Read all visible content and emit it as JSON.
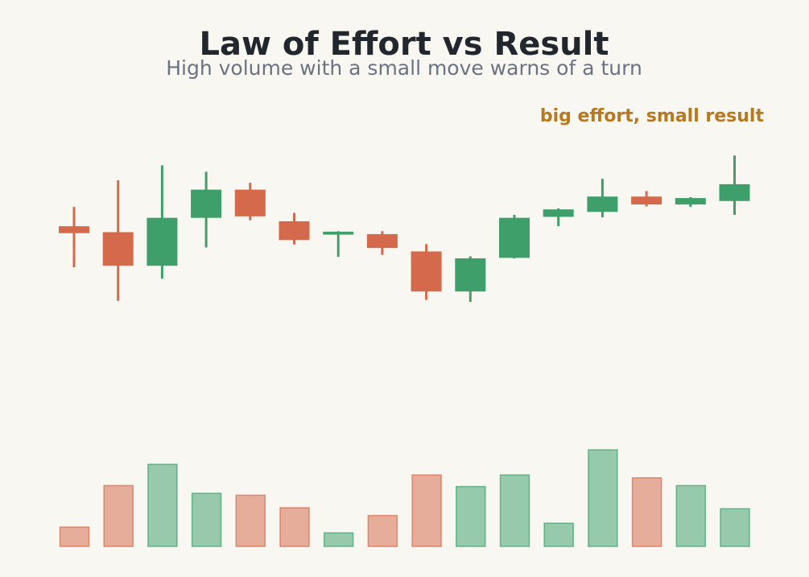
{
  "chart_data": {
    "type": "candlestick",
    "title": "Law of Effort vs Result",
    "subtitle": "High volume with a small move warns of a turn",
    "annotation": {
      "text": "big effort, small result",
      "target_index": 15
    },
    "colors": {
      "up": "#3e9f6b",
      "down": "#d46a4b",
      "annotation": "#b7791f",
      "background": "#f9f7f2"
    },
    "grid": false,
    "price_range": [
      40,
      110
    ],
    "volume_range": [
      0,
      100
    ],
    "candles": [
      {
        "open": 85.4,
        "close": 84.0,
        "high": 89.3,
        "low": 77.1,
        "volume": 20
      },
      {
        "open": 84.2,
        "close": 77.4,
        "high": 94.7,
        "low": 70.3,
        "volume": 63
      },
      {
        "open": 77.4,
        "close": 87.1,
        "high": 97.7,
        "low": 74.8,
        "volume": 85
      },
      {
        "open": 87.1,
        "close": 92.8,
        "high": 96.4,
        "low": 81.1,
        "volume": 55
      },
      {
        "open": 92.8,
        "close": 87.4,
        "high": 94.2,
        "low": 86.6,
        "volume": 53
      },
      {
        "open": 86.4,
        "close": 82.6,
        "high": 88.1,
        "low": 81.7,
        "volume": 40
      },
      {
        "open": 83.7,
        "close": 84.3,
        "high": 84.4,
        "low": 79.2,
        "volume": 14
      },
      {
        "open": 83.8,
        "close": 81.0,
        "high": 84.4,
        "low": 79.6,
        "volume": 32
      },
      {
        "open": 80.3,
        "close": 72.2,
        "high": 81.8,
        "low": 70.5,
        "volume": 74
      },
      {
        "open": 72.2,
        "close": 78.9,
        "high": 79.3,
        "low": 70.1,
        "volume": 62
      },
      {
        "open": 79.0,
        "close": 87.1,
        "high": 87.7,
        "low": 78.9,
        "volume": 74
      },
      {
        "open": 87.3,
        "close": 88.8,
        "high": 89.0,
        "low": 85.4,
        "volume": 24
      },
      {
        "open": 88.3,
        "close": 91.4,
        "high": 95.0,
        "low": 87.2,
        "volume": 100
      },
      {
        "open": 91.4,
        "close": 89.8,
        "high": 92.5,
        "low": 89.4,
        "volume": 71
      },
      {
        "open": 89.8,
        "close": 91.1,
        "high": 91.3,
        "low": 89.3,
        "volume": 63
      },
      {
        "open": 90.5,
        "close": 93.9,
        "high": 99.7,
        "low": 87.7,
        "volume": 39
      }
    ]
  }
}
